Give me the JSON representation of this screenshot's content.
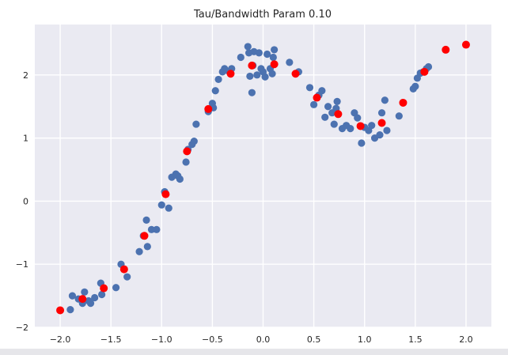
{
  "chart_data": {
    "type": "scatter",
    "title": "Tau/Bandwidth Param 0.10",
    "xlabel": "",
    "ylabel": "",
    "xlim": [
      -2.25,
      2.25
    ],
    "ylim": [
      -2.0,
      2.8
    ],
    "grid": true,
    "xticks": [
      -2.0,
      -1.5,
      -1.0,
      -0.5,
      0.0,
      0.5,
      1.0,
      1.5,
      2.0
    ],
    "xtick_labels": [
      "−2.0",
      "−1.5",
      "−1.0",
      "−0.5",
      "0.0",
      "0.5",
      "1.0",
      "1.5",
      "2.0"
    ],
    "yticks": [
      -2,
      -1,
      0,
      1,
      2
    ],
    "ytick_labels": [
      "−2",
      "−1",
      "0",
      "1",
      "2"
    ],
    "series": [
      {
        "color": "#4c72b0",
        "points": [
          [
            -1.9,
            -1.72
          ],
          [
            -1.88,
            -1.5
          ],
          [
            -1.82,
            -1.55
          ],
          [
            -1.78,
            -1.62
          ],
          [
            -1.76,
            -1.44
          ],
          [
            -1.72,
            -1.58
          ],
          [
            -1.7,
            -1.62
          ],
          [
            -1.66,
            -1.53
          ],
          [
            -1.6,
            -1.3
          ],
          [
            -1.59,
            -1.48
          ],
          [
            -1.45,
            -1.37
          ],
          [
            -1.4,
            -1.0
          ],
          [
            -1.37,
            -1.08
          ],
          [
            -1.34,
            -1.2
          ],
          [
            -1.22,
            -0.8
          ],
          [
            -1.18,
            -0.55
          ],
          [
            -1.15,
            -0.3
          ],
          [
            -1.14,
            -0.72
          ],
          [
            -1.1,
            -0.45
          ],
          [
            -1.05,
            -0.45
          ],
          [
            -1.0,
            -0.06
          ],
          [
            -0.97,
            0.15
          ],
          [
            -0.96,
            0.12
          ],
          [
            -0.93,
            -0.11
          ],
          [
            -0.9,
            0.38
          ],
          [
            -0.86,
            0.43
          ],
          [
            -0.84,
            0.4
          ],
          [
            -0.82,
            0.35
          ],
          [
            -0.76,
            0.62
          ],
          [
            -0.74,
            0.82
          ],
          [
            -0.7,
            0.9
          ],
          [
            -0.68,
            0.95
          ],
          [
            -0.66,
            1.22
          ],
          [
            -0.54,
            1.42
          ],
          [
            -0.5,
            1.55
          ],
          [
            -0.49,
            1.48
          ],
          [
            -0.47,
            1.75
          ],
          [
            -0.44,
            1.93
          ],
          [
            -0.4,
            2.05
          ],
          [
            -0.38,
            2.1
          ],
          [
            -0.34,
            2.06
          ],
          [
            -0.31,
            2.1
          ],
          [
            -0.22,
            2.28
          ],
          [
            -0.15,
            2.45
          ],
          [
            -0.14,
            2.35
          ],
          [
            -0.13,
            1.98
          ],
          [
            -0.11,
            1.72
          ],
          [
            -0.1,
            2.15
          ],
          [
            -0.09,
            2.37
          ],
          [
            -0.06,
            2.0
          ],
          [
            -0.04,
            2.35
          ],
          [
            -0.02,
            2.1
          ],
          [
            0.0,
            2.05
          ],
          [
            0.02,
            1.97
          ],
          [
            0.04,
            2.33
          ],
          [
            0.07,
            2.1
          ],
          [
            0.09,
            2.02
          ],
          [
            0.1,
            2.28
          ],
          [
            0.11,
            2.4
          ],
          [
            0.26,
            2.2
          ],
          [
            0.35,
            2.05
          ],
          [
            0.46,
            1.8
          ],
          [
            0.5,
            1.53
          ],
          [
            0.55,
            1.68
          ],
          [
            0.58,
            1.75
          ],
          [
            0.61,
            1.33
          ],
          [
            0.64,
            1.5
          ],
          [
            0.68,
            1.4
          ],
          [
            0.7,
            1.22
          ],
          [
            0.72,
            1.47
          ],
          [
            0.73,
            1.58
          ],
          [
            0.78,
            1.15
          ],
          [
            0.82,
            1.2
          ],
          [
            0.86,
            1.15
          ],
          [
            0.9,
            1.4
          ],
          [
            0.93,
            1.32
          ],
          [
            0.97,
            0.92
          ],
          [
            1.0,
            1.17
          ],
          [
            1.04,
            1.12
          ],
          [
            1.07,
            1.2
          ],
          [
            1.1,
            1.0
          ],
          [
            1.15,
            1.05
          ],
          [
            1.17,
            1.4
          ],
          [
            1.2,
            1.6
          ],
          [
            1.22,
            1.12
          ],
          [
            1.34,
            1.35
          ],
          [
            1.48,
            1.78
          ],
          [
            1.5,
            1.82
          ],
          [
            1.52,
            1.95
          ],
          [
            1.55,
            2.03
          ],
          [
            1.58,
            2.05
          ],
          [
            1.61,
            2.1
          ],
          [
            1.63,
            2.13
          ]
        ]
      },
      {
        "color": "#ff0000",
        "points": [
          [
            -2.0,
            -1.73
          ],
          [
            -1.78,
            -1.55
          ],
          [
            -1.57,
            -1.38
          ],
          [
            -1.37,
            -1.08
          ],
          [
            -1.17,
            -0.55
          ],
          [
            -0.96,
            0.11
          ],
          [
            -0.75,
            0.79
          ],
          [
            -0.54,
            1.46
          ],
          [
            -0.32,
            2.02
          ],
          [
            -0.11,
            2.15
          ],
          [
            0.11,
            2.17
          ],
          [
            0.32,
            2.02
          ],
          [
            0.53,
            1.64
          ],
          [
            0.74,
            1.38
          ],
          [
            0.96,
            1.19
          ],
          [
            1.17,
            1.24
          ],
          [
            1.38,
            1.56
          ],
          [
            1.59,
            2.05
          ],
          [
            1.8,
            2.4
          ],
          [
            2.0,
            2.48
          ]
        ]
      }
    ]
  }
}
